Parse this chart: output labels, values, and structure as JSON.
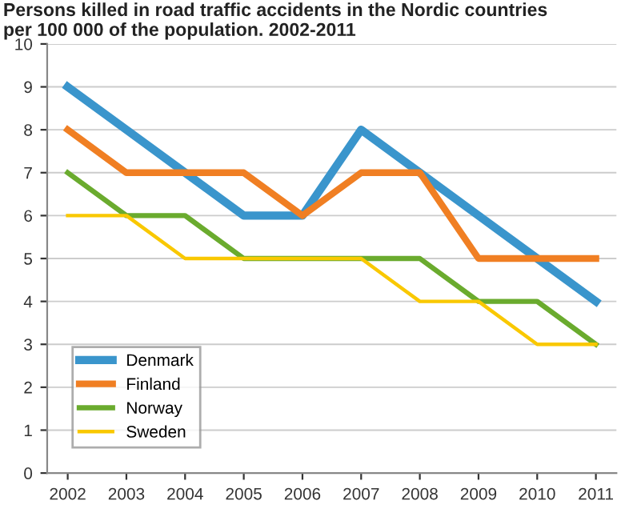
{
  "chart_data": {
    "type": "line",
    "title": "Persons killed in road traffic accidents in the Nordic countries\nper 100 000 of the population. 2002-2011",
    "categories": [
      "2002",
      "2003",
      "2004",
      "2005",
      "2006",
      "2007",
      "2008",
      "2009",
      "2010",
      "2011"
    ],
    "series": [
      {
        "name": "Denmark",
        "color": "#3a95cc",
        "values": [
          9,
          8,
          7,
          6,
          6,
          8,
          7,
          6,
          5,
          4
        ]
      },
      {
        "name": "Finland",
        "color": "#f07f23",
        "values": [
          8,
          7,
          7,
          7,
          6,
          7,
          7,
          5,
          5,
          5
        ]
      },
      {
        "name": "Norway",
        "color": "#6aab2e",
        "values": [
          7,
          6,
          6,
          5,
          5,
          5,
          5,
          4,
          4,
          3
        ]
      },
      {
        "name": "Sweden",
        "color": "#f9c800",
        "values": [
          6,
          6,
          5,
          5,
          5,
          5,
          4,
          4,
          3,
          3
        ]
      }
    ],
    "ylim": [
      0,
      10
    ],
    "yticks": [
      0,
      1,
      2,
      3,
      4,
      5,
      6,
      7,
      8,
      9,
      10
    ],
    "grid": "y",
    "legend": "bottom left",
    "marker": "none",
    "line_style": "solid"
  }
}
